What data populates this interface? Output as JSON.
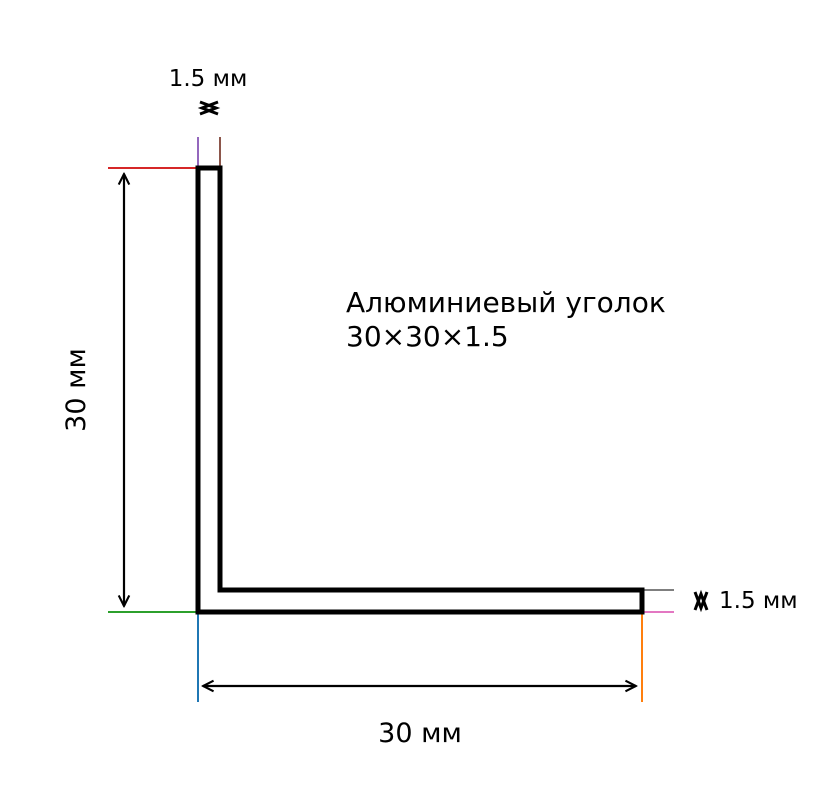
{
  "title_lines": [
    "Алюминиевый уголок",
    "30×30×1.5"
  ],
  "dimensions": {
    "height_label": "30 мм",
    "width_label": "30 мм",
    "top_thickness_label": "1.5 мм",
    "right_thickness_label": "1.5 мм"
  },
  "colors": {
    "profile": "#000000",
    "top_edge_guide": "#d62728",
    "bottom_edge_guide": "#2ca02c",
    "left_edge_guide": "#1f77b4",
    "right_edge_guide": "#ff7f0e",
    "top_thickness_left_guide": "#9467bd",
    "top_thickness_right_guide": "#8c564b",
    "right_thickness_top_guide": "#7f7f7f",
    "right_thickness_bottom_guide": "#e377c2"
  }
}
